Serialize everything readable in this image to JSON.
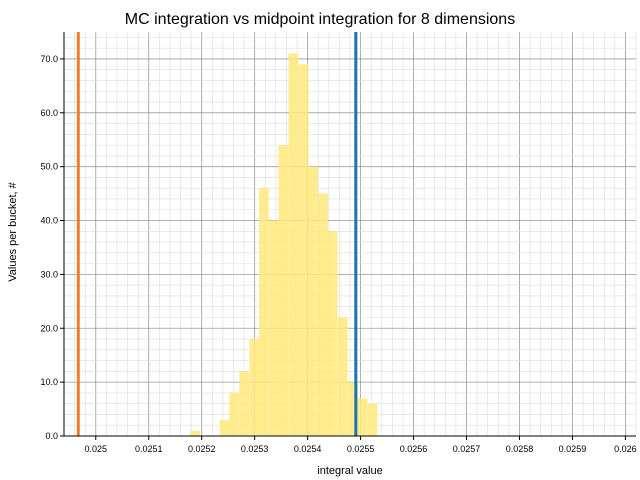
{
  "chart_data": {
    "type": "bar",
    "title": "MC integration vs midpoint integration for 8 dimensions",
    "xlabel": "integral value",
    "ylabel": "Values per bucket, #",
    "xlim": [
      0.02494,
      0.02602
    ],
    "ylim": [
      0,
      75
    ],
    "x_ticks": [
      "0.025",
      "0.0251",
      "0.0252",
      "0.0253",
      "0.0254",
      "0.0255",
      "0.0256",
      "0.0257",
      "0.0258",
      "0.0259",
      "0.026"
    ],
    "y_ticks": [
      "0.0",
      "10.0",
      "20.0",
      "30.0",
      "40.0",
      "50.0",
      "60.0",
      "70.0"
    ],
    "grid": true,
    "bin_width": 1.857e-05,
    "bins": [
      {
        "start": 0.025178,
        "count": 1
      },
      {
        "start": 0.025234,
        "count": 3
      },
      {
        "start": 0.025252,
        "count": 8
      },
      {
        "start": 0.025271,
        "count": 12
      },
      {
        "start": 0.02529,
        "count": 18
      },
      {
        "start": 0.025308,
        "count": 46
      },
      {
        "start": 0.025327,
        "count": 40
      },
      {
        "start": 0.025345,
        "count": 54
      },
      {
        "start": 0.025364,
        "count": 71
      },
      {
        "start": 0.025383,
        "count": 69
      },
      {
        "start": 0.025401,
        "count": 50
      },
      {
        "start": 0.02542,
        "count": 45
      },
      {
        "start": 0.025438,
        "count": 38
      },
      {
        "start": 0.025457,
        "count": 22
      },
      {
        "start": 0.025476,
        "count": 10
      },
      {
        "start": 0.025494,
        "count": 7
      },
      {
        "start": 0.025513,
        "count": 6
      }
    ],
    "reference_lines": [
      {
        "x": 0.024967,
        "color": "#ee7d2c"
      },
      {
        "x": 0.025491,
        "color": "#1a74b0"
      }
    ],
    "bar_color": "#ffe97a"
  }
}
